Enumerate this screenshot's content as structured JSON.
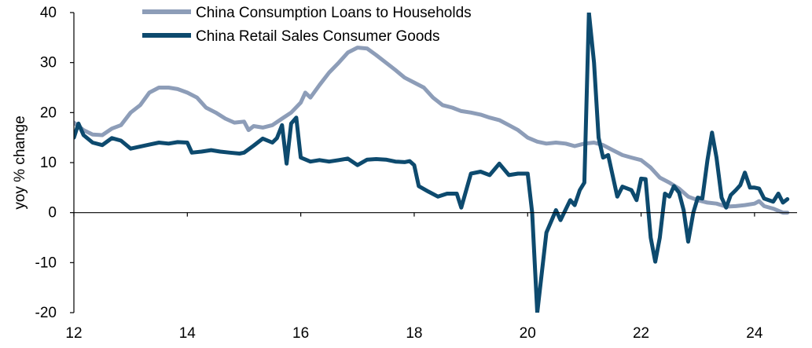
{
  "chart_data": {
    "type": "line",
    "title": "",
    "xlabel": "",
    "ylabel": "yoy % change",
    "xlim": [
      2012,
      2024.75
    ],
    "ylim": [
      -20,
      40
    ],
    "x_ticks": [
      12,
      14,
      16,
      18,
      20,
      22,
      24
    ],
    "x_tick_labels": [
      "12",
      "14",
      "16",
      "18",
      "20",
      "22",
      "24"
    ],
    "y_ticks": [
      -20,
      -10,
      0,
      10,
      20,
      30,
      40
    ],
    "y_tick_labels": [
      "-20",
      "-10",
      "0",
      "10",
      "20",
      "30",
      "40"
    ],
    "grid": false,
    "legend_position": "top-left",
    "series": [
      {
        "name": "China Consumption Loans to Households",
        "color": "#8d9db8",
        "points": [
          [
            2012.0,
            18
          ],
          [
            2012.17,
            16.5
          ],
          [
            2012.33,
            15.6
          ],
          [
            2012.5,
            15.5
          ],
          [
            2012.67,
            16.8
          ],
          [
            2012.83,
            17.5
          ],
          [
            2013.0,
            20
          ],
          [
            2013.17,
            21.5
          ],
          [
            2013.33,
            24
          ],
          [
            2013.5,
            25
          ],
          [
            2013.67,
            25
          ],
          [
            2013.83,
            24.7
          ],
          [
            2014.0,
            24
          ],
          [
            2014.17,
            23
          ],
          [
            2014.33,
            21
          ],
          [
            2014.5,
            20
          ],
          [
            2014.67,
            18.8
          ],
          [
            2014.83,
            18
          ],
          [
            2015.0,
            18.2
          ],
          [
            2015.08,
            16.5
          ],
          [
            2015.17,
            17.3
          ],
          [
            2015.33,
            17
          ],
          [
            2015.5,
            17.5
          ],
          [
            2015.67,
            18.8
          ],
          [
            2015.83,
            20
          ],
          [
            2016.0,
            22
          ],
          [
            2016.08,
            24
          ],
          [
            2016.17,
            23
          ],
          [
            2016.33,
            25.5
          ],
          [
            2016.5,
            28
          ],
          [
            2016.67,
            30
          ],
          [
            2016.83,
            32
          ],
          [
            2017.0,
            33
          ],
          [
            2017.17,
            32.8
          ],
          [
            2017.33,
            31.5
          ],
          [
            2017.5,
            30
          ],
          [
            2017.67,
            28.5
          ],
          [
            2017.83,
            27
          ],
          [
            2018.0,
            26
          ],
          [
            2018.17,
            25
          ],
          [
            2018.33,
            23
          ],
          [
            2018.5,
            21.5
          ],
          [
            2018.67,
            21
          ],
          [
            2018.83,
            20.3
          ],
          [
            2019.0,
            20
          ],
          [
            2019.17,
            19.6
          ],
          [
            2019.33,
            19
          ],
          [
            2019.5,
            18.5
          ],
          [
            2019.67,
            17.5
          ],
          [
            2019.83,
            16.5
          ],
          [
            2020.0,
            15
          ],
          [
            2020.17,
            14.2
          ],
          [
            2020.33,
            13.8
          ],
          [
            2020.5,
            14
          ],
          [
            2020.67,
            13.8
          ],
          [
            2020.83,
            13.3
          ],
          [
            2021.0,
            13.8
          ],
          [
            2021.17,
            14
          ],
          [
            2021.33,
            13.5
          ],
          [
            2021.5,
            12.5
          ],
          [
            2021.67,
            11.5
          ],
          [
            2021.83,
            11
          ],
          [
            2022.0,
            10.5
          ],
          [
            2022.17,
            9
          ],
          [
            2022.33,
            7
          ],
          [
            2022.5,
            6
          ],
          [
            2022.67,
            4.8
          ],
          [
            2022.83,
            3.2
          ],
          [
            2023.0,
            2.5
          ],
          [
            2023.17,
            2
          ],
          [
            2023.33,
            1.8
          ],
          [
            2023.5,
            1.2
          ],
          [
            2023.67,
            1.3
          ],
          [
            2023.83,
            1.5
          ],
          [
            2024.0,
            1.8
          ],
          [
            2024.08,
            2.3
          ],
          [
            2024.17,
            1.3
          ],
          [
            2024.33,
            0.8
          ],
          [
            2024.5,
            0
          ],
          [
            2024.58,
            0
          ]
        ]
      },
      {
        "name": "China Retail Sales Consumer Goods",
        "color": "#0d4a6e",
        "points": [
          [
            2012.0,
            15
          ],
          [
            2012.08,
            17.8
          ],
          [
            2012.17,
            15.5
          ],
          [
            2012.33,
            14
          ],
          [
            2012.5,
            13.5
          ],
          [
            2012.67,
            14.9
          ],
          [
            2012.83,
            14.4
          ],
          [
            2013.0,
            12.8
          ],
          [
            2013.17,
            13.2
          ],
          [
            2013.33,
            13.6
          ],
          [
            2013.5,
            14
          ],
          [
            2013.67,
            13.8
          ],
          [
            2013.83,
            14.1
          ],
          [
            2014.0,
            14
          ],
          [
            2014.08,
            12
          ],
          [
            2014.25,
            12.2
          ],
          [
            2014.42,
            12.5
          ],
          [
            2014.58,
            12.2
          ],
          [
            2014.75,
            12
          ],
          [
            2014.92,
            11.8
          ],
          [
            2015.0,
            12
          ],
          [
            2015.17,
            13.4
          ],
          [
            2015.33,
            14.8
          ],
          [
            2015.5,
            14
          ],
          [
            2015.58,
            14.9
          ],
          [
            2015.67,
            17.5
          ],
          [
            2015.75,
            9.8
          ],
          [
            2015.83,
            17.8
          ],
          [
            2015.92,
            19
          ],
          [
            2016.0,
            11
          ],
          [
            2016.17,
            10.2
          ],
          [
            2016.33,
            10.5
          ],
          [
            2016.5,
            10.2
          ],
          [
            2016.67,
            10.5
          ],
          [
            2016.83,
            10.8
          ],
          [
            2017.0,
            9.5
          ],
          [
            2017.17,
            10.6
          ],
          [
            2017.33,
            10.7
          ],
          [
            2017.5,
            10.6
          ],
          [
            2017.67,
            10.2
          ],
          [
            2017.83,
            10.1
          ],
          [
            2017.92,
            10.3
          ],
          [
            2018.0,
            9.5
          ],
          [
            2018.08,
            5.3
          ],
          [
            2018.25,
            4.2
          ],
          [
            2018.42,
            3.2
          ],
          [
            2018.58,
            3.8
          ],
          [
            2018.75,
            3.8
          ],
          [
            2018.83,
            1
          ],
          [
            2019.0,
            7.8
          ],
          [
            2019.17,
            8.2
          ],
          [
            2019.33,
            7.5
          ],
          [
            2019.5,
            9.8
          ],
          [
            2019.67,
            7.5
          ],
          [
            2019.83,
            7.8
          ],
          [
            2020.0,
            7.8
          ],
          [
            2020.08,
            0
          ],
          [
            2020.17,
            -20
          ],
          [
            2020.25,
            -12
          ],
          [
            2020.33,
            -4
          ],
          [
            2020.5,
            0.5
          ],
          [
            2020.58,
            -1.5
          ],
          [
            2020.75,
            2.5
          ],
          [
            2020.83,
            1.5
          ],
          [
            2020.92,
            4.5
          ],
          [
            2021.0,
            6
          ],
          [
            2021.08,
            40
          ],
          [
            2021.17,
            30
          ],
          [
            2021.25,
            15
          ],
          [
            2021.33,
            11
          ],
          [
            2021.42,
            11.5
          ],
          [
            2021.58,
            3.2
          ],
          [
            2021.67,
            5.2
          ],
          [
            2021.83,
            4.5
          ],
          [
            2021.92,
            2.5
          ],
          [
            2022.0,
            6.8
          ],
          [
            2022.08,
            6.7
          ],
          [
            2022.17,
            -5
          ],
          [
            2022.25,
            -9.8
          ],
          [
            2022.33,
            -5
          ],
          [
            2022.42,
            3.8
          ],
          [
            2022.5,
            3.2
          ],
          [
            2022.58,
            5.3
          ],
          [
            2022.67,
            4
          ],
          [
            2022.75,
            0.5
          ],
          [
            2022.83,
            -5.8
          ],
          [
            2022.92,
            0
          ],
          [
            2023.0,
            3
          ],
          [
            2023.08,
            2.8
          ],
          [
            2023.17,
            10.5
          ],
          [
            2023.25,
            16
          ],
          [
            2023.33,
            11
          ],
          [
            2023.42,
            3
          ],
          [
            2023.5,
            1
          ],
          [
            2023.58,
            3.5
          ],
          [
            2023.67,
            4.5
          ],
          [
            2023.75,
            5.5
          ],
          [
            2023.83,
            8
          ],
          [
            2023.92,
            5
          ],
          [
            2024.0,
            5
          ],
          [
            2024.08,
            4.8
          ],
          [
            2024.17,
            2.8
          ],
          [
            2024.33,
            2.2
          ],
          [
            2024.42,
            3.8
          ],
          [
            2024.5,
            2
          ],
          [
            2024.58,
            2.7
          ]
        ]
      }
    ]
  }
}
